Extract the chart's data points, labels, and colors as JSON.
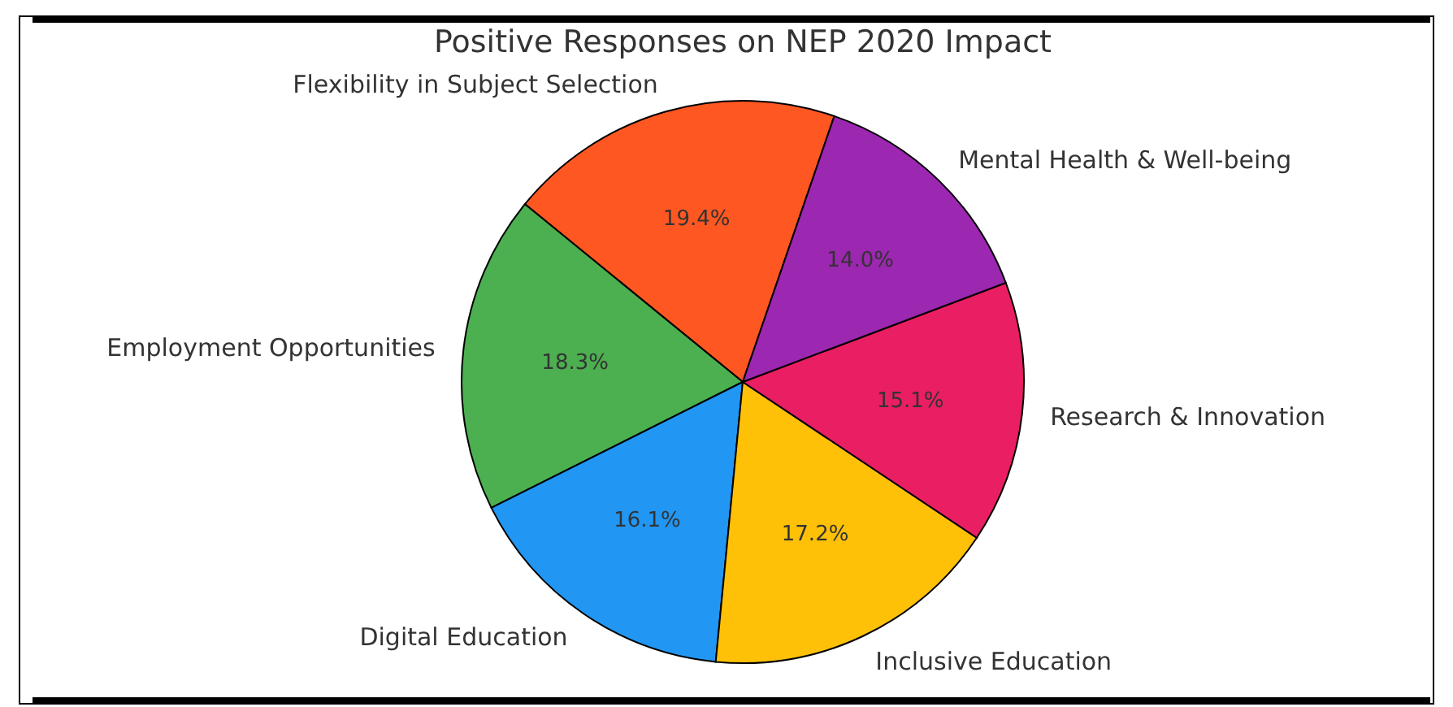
{
  "chart_data": {
    "type": "pie",
    "title": "Positive Responses on NEP 2020 Impact",
    "categories": [
      "Flexibility in Subject Selection",
      "Employment Opportunities",
      "Digital Education",
      "Inclusive Education",
      "Research & Innovation",
      "Mental Health & Well-being"
    ],
    "values": [
      19.4,
      18.3,
      16.1,
      17.2,
      15.1,
      14.0
    ],
    "value_labels": [
      "19.4%",
      "18.3%",
      "16.1%",
      "17.2%",
      "15.1%",
      "14.0%"
    ],
    "colors": [
      "#ff5722",
      "#4caf50",
      "#2196f3",
      "#ffc107",
      "#e91e63",
      "#9c27b0"
    ]
  }
}
